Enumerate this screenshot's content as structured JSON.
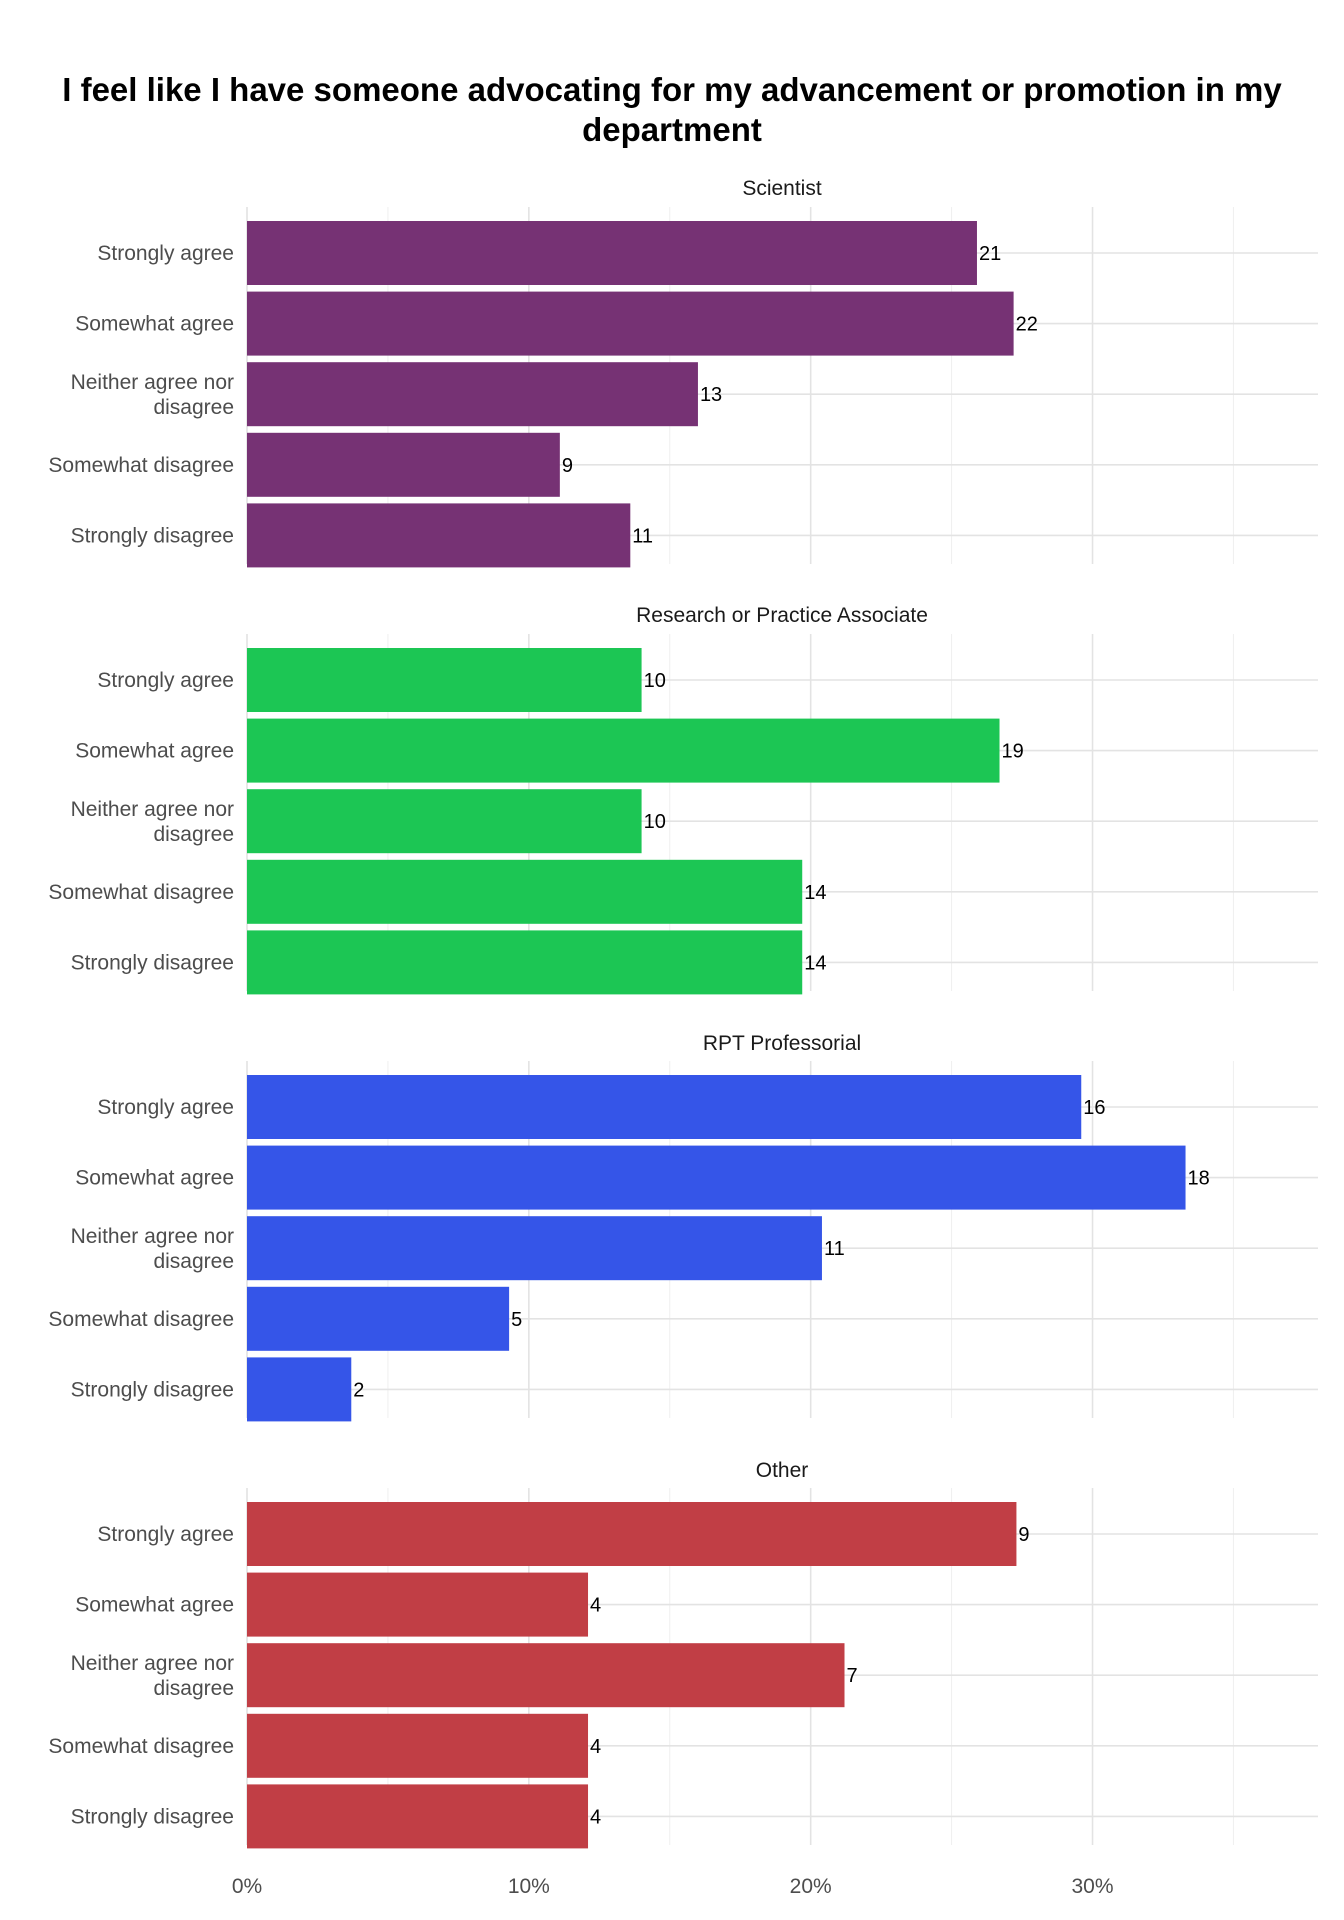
{
  "chart_data": {
    "type": "bar",
    "orientation": "horizontal",
    "title": "I feel like I have someone advocating for my advancement or promotion in my department",
    "xlabel": "",
    "ylabel": "",
    "x_unit": "percent",
    "xlim": [
      0,
      38
    ],
    "x_ticks": [
      "0%",
      "10%",
      "20%",
      "30%"
    ],
    "grid": true,
    "legend": "none",
    "categories": [
      "Strongly agree",
      "Somewhat agree",
      "Neither agree nor disagree",
      "Somewhat disagree",
      "Strongly disagree"
    ],
    "panels": [
      {
        "name": "Scientist",
        "color": "#763274",
        "counts": [
          21,
          22,
          13,
          9,
          11
        ],
        "percents": [
          25.9,
          27.2,
          16.0,
          11.1,
          13.6
        ]
      },
      {
        "name": "Research or Practice Associate",
        "color": "#1CC654",
        "counts": [
          10,
          19,
          10,
          14,
          14
        ],
        "percents": [
          14.0,
          26.7,
          14.0,
          19.7,
          19.7
        ]
      },
      {
        "name": "RPT Professorial",
        "color": "#3555E8",
        "counts": [
          16,
          18,
          11,
          5,
          2
        ],
        "percents": [
          29.6,
          33.3,
          20.4,
          9.3,
          3.7
        ]
      },
      {
        "name": "Other",
        "color": "#C13E45",
        "counts": [
          9,
          4,
          7,
          4,
          4
        ],
        "percents": [
          27.3,
          12.1,
          21.2,
          12.1,
          12.1
        ]
      }
    ]
  }
}
